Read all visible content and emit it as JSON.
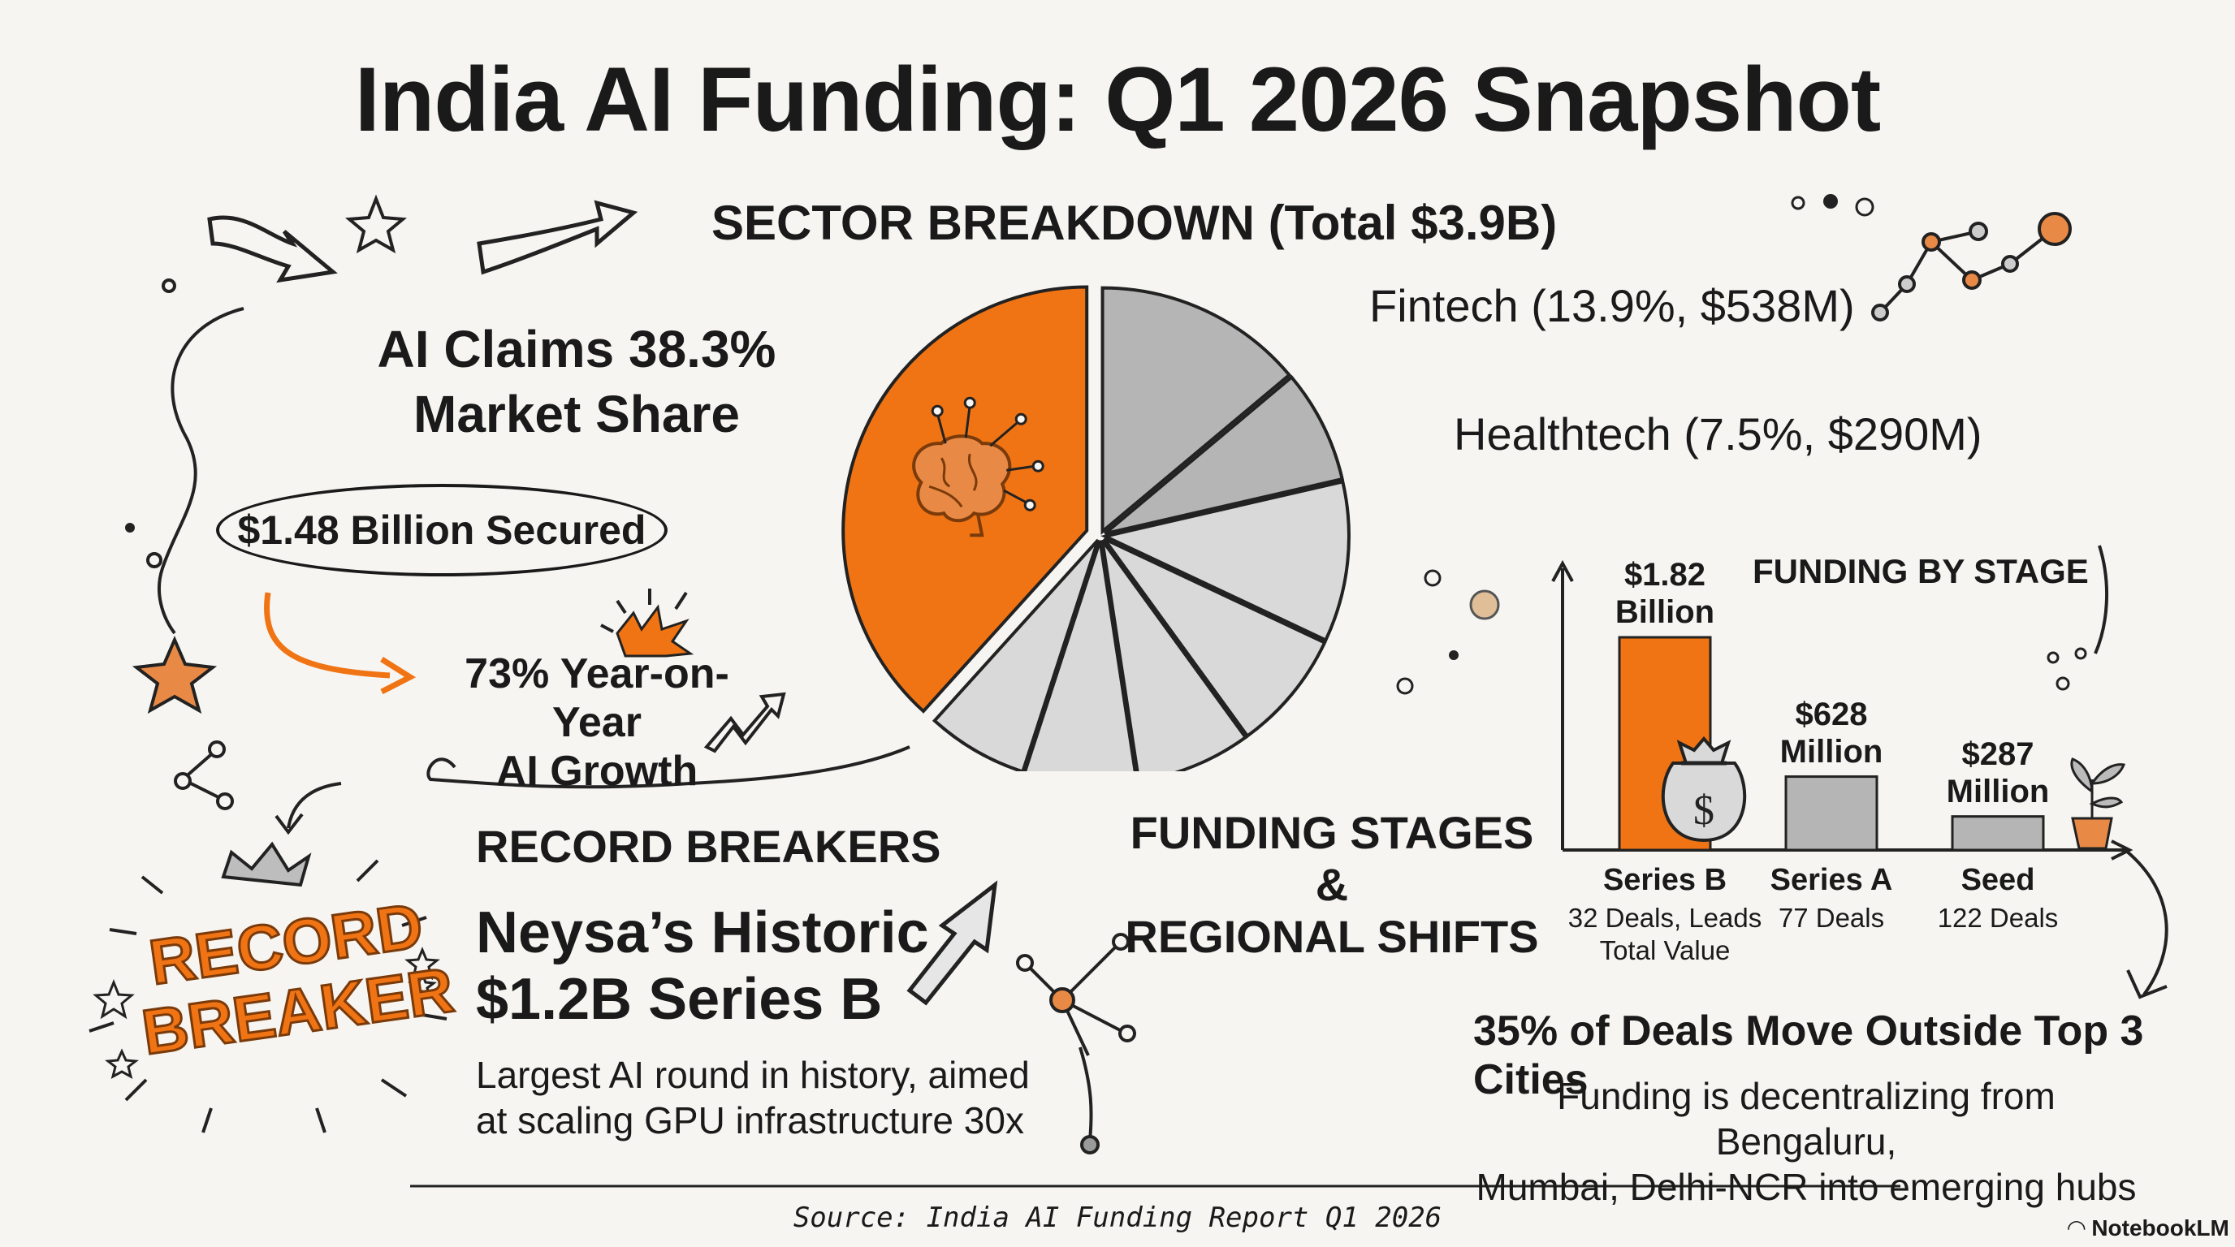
{
  "title": "India AI Funding: Q1 2026 Snapshot",
  "sector_heading": "SECTOR BREAKDOWN (Total $3.9B)",
  "ai_share": {
    "line1": "AI Claims 38.3%",
    "line2": "Market Share",
    "secured": "$1.48 Billion Secured",
    "growth_line1": "73% Year-on-Year",
    "growth_line2": "AI Growth"
  },
  "record": {
    "heading": "RECORD BREAKERS",
    "badge_line1": "RECORD",
    "badge_line2": "BREAKER",
    "neysa_line1": "Neysa’s Historic",
    "neysa_line2": "$1.2B Series B",
    "desc_line1": "Largest AI round in history, aimed",
    "desc_line2": "at scaling GPU infrastructure 30x"
  },
  "stages_heading": {
    "line1": "FUNDING STAGES &",
    "line2": "REGIONAL SHIFTS"
  },
  "regional": {
    "heading": "35% of Deals Move Outside Top 3 Cities",
    "desc_line1": "Funding is decentralizing from Bengaluru,",
    "desc_line2": "Mumbai, Delhi-NCR into emerging hubs"
  },
  "source": "Source: India AI Funding Report Q1 2026",
  "brand": "NotebookLM",
  "colors": {
    "accent": "#f07414",
    "gray": "#b5b5b5",
    "light_gray": "#d9d9d9"
  },
  "chart_data": [
    {
      "type": "pie",
      "title": "SECTOR BREAKDOWN (Total $3.9B)",
      "total": "$3.9B",
      "slices": [
        {
          "name": "AI",
          "percent": 38.3,
          "value_label": "$1.48 Billion Secured",
          "color": "#f07414",
          "icon": "brain-icon"
        },
        {
          "name": "Fintech",
          "percent": 13.9,
          "value_label": "$538M",
          "label": "Fintech (13.9%, $538M)",
          "color": "#b5b5b5"
        },
        {
          "name": "Healthtech",
          "percent": 7.5,
          "value_label": "$290M",
          "label": "Healthtech (7.5%, $290M)",
          "color": "#b5b5b5"
        },
        {
          "name": "",
          "percent": 10.6,
          "color": "#d9d9d9"
        },
        {
          "name": "",
          "percent": 8.0,
          "color": "#d9d9d9"
        },
        {
          "name": "",
          "percent": 7.6,
          "color": "#d9d9d9"
        },
        {
          "name": "",
          "percent": 7.4,
          "color": "#d9d9d9"
        },
        {
          "name": "",
          "percent": 6.7,
          "color": "#d9d9d9"
        }
      ]
    },
    {
      "type": "bar",
      "title": "FUNDING BY STAGE",
      "categories": [
        "Series B",
        "Series A",
        "Seed"
      ],
      "values": [
        1820,
        628,
        287
      ],
      "unit": "million USD",
      "value_labels": [
        [
          "$1.82",
          "Billion"
        ],
        [
          "$628",
          "Million"
        ],
        [
          "$287",
          "Million"
        ]
      ],
      "sub_labels": [
        [
          "32 Deals, Leads",
          "Total Value"
        ],
        [
          "77 Deals"
        ],
        [
          "122 Deals"
        ]
      ],
      "colors": [
        "#f07414",
        "#b5b5b5",
        "#b5b5b5"
      ],
      "ylim": [
        0,
        2500
      ]
    }
  ]
}
